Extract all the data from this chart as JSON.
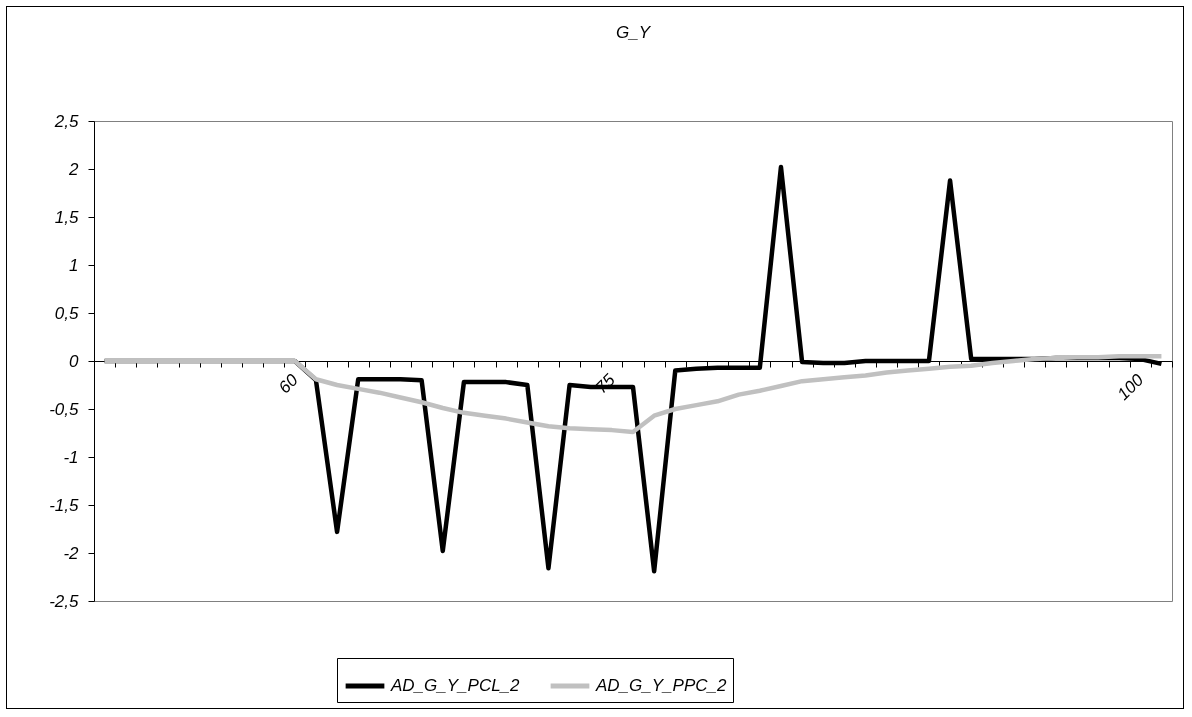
{
  "chart_data": {
    "type": "line",
    "title": "G_Y",
    "categories": [
      null,
      null,
      null,
      null,
      null,
      null,
      null,
      null,
      null,
      "60",
      null,
      null,
      null,
      null,
      null,
      null,
      null,
      null,
      null,
      null,
      null,
      null,
      null,
      null,
      "75",
      null,
      null,
      null,
      null,
      null,
      null,
      null,
      null,
      null,
      null,
      null,
      null,
      null,
      null,
      null,
      null,
      null,
      null,
      null,
      null,
      null,
      null,
      null,
      null,
      "100",
      null
    ],
    "series": [
      {
        "name": "AD_G_Y_PCL_2",
        "color": "#000000",
        "values": [
          0,
          0,
          0,
          0,
          0,
          0,
          0,
          0,
          0,
          0,
          -0.2,
          -1.78,
          -0.19,
          -0.19,
          -0.19,
          -0.2,
          -1.98,
          -0.22,
          -0.22,
          -0.22,
          -0.25,
          -2.16,
          -0.25,
          -0.27,
          -0.27,
          -0.27,
          -2.19,
          -0.1,
          -0.08,
          -0.07,
          -0.07,
          -0.07,
          2.02,
          -0.01,
          -0.02,
          -0.02,
          0,
          0,
          0,
          0,
          1.88,
          0.02,
          0.02,
          0.02,
          0.02,
          0.03,
          0.03,
          0.03,
          0.03,
          0.02,
          -0.03
        ]
      },
      {
        "name": "AD_G_Y_PPC_2",
        "color": "#c0c0c0",
        "values": [
          0,
          0,
          0,
          0,
          0,
          0,
          0,
          0,
          0,
          0,
          -0.19,
          -0.25,
          -0.29,
          -0.33,
          -0.38,
          -0.43,
          -0.49,
          -0.54,
          -0.57,
          -0.6,
          -0.64,
          -0.68,
          -0.7,
          -0.71,
          -0.72,
          -0.74,
          -0.57,
          -0.5,
          -0.46,
          -0.42,
          -0.35,
          -0.31,
          -0.26,
          -0.21,
          -0.19,
          -0.17,
          -0.15,
          -0.12,
          -0.1,
          -0.08,
          -0.06,
          -0.05,
          -0.02,
          0,
          0.02,
          0.03,
          0.04,
          0.04,
          0.05,
          0.05,
          0.05
        ]
      }
    ],
    "ylim": [
      -2.5,
      2.5
    ],
    "yticks": [
      {
        "value": -2.5,
        "label": "-2,5"
      },
      {
        "value": -2,
        "label": "-2"
      },
      {
        "value": -1.5,
        "label": "-1,5"
      },
      {
        "value": -1,
        "label": "-1"
      },
      {
        "value": -0.5,
        "label": "-0,5"
      },
      {
        "value": 0,
        "label": "0"
      },
      {
        "value": 0.5,
        "label": "0,5"
      },
      {
        "value": 1,
        "label": "1"
      },
      {
        "value": 1.5,
        "label": "1,5"
      },
      {
        "value": 2,
        "label": "2"
      },
      {
        "value": 2.5,
        "label": "2,5"
      }
    ],
    "grid": false,
    "legend": "bottom",
    "marker": "none",
    "line_style": "solid"
  }
}
